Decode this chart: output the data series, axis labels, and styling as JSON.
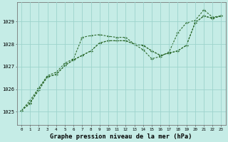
{
  "xlabel_label": "Graphe pression niveau de la mer (hPa)",
  "bg_color": "#c5ece6",
  "grid_color": "#9dd4cc",
  "line_color": "#2d6b2d",
  "x_ticks": [
    0,
    1,
    2,
    3,
    4,
    5,
    6,
    7,
    8,
    9,
    10,
    11,
    12,
    13,
    14,
    15,
    16,
    17,
    18,
    19,
    20,
    21,
    22,
    23
  ],
  "y_ticks": [
    1025,
    1026,
    1027,
    1028,
    1029
  ],
  "ylim": [
    1024.4,
    1029.85
  ],
  "xlim": [
    -0.5,
    23.5
  ],
  "series1": [
    1025.05,
    1025.4,
    1025.95,
    1026.55,
    1026.65,
    1027.05,
    1027.3,
    1027.5,
    1027.7,
    1028.05,
    1028.15,
    1028.15,
    1028.15,
    1028.0,
    1027.95,
    1027.7,
    1027.5,
    1027.6,
    1027.7,
    1027.95,
    1028.95,
    1029.25,
    1029.15,
    1029.25
  ],
  "series2": [
    1025.05,
    1025.35,
    1026.05,
    1026.55,
    1026.65,
    1027.05,
    1027.3,
    1027.5,
    1027.7,
    1028.05,
    1028.15,
    1028.15,
    1028.15,
    1028.0,
    1027.95,
    1027.7,
    1027.5,
    1027.6,
    1027.7,
    1027.95,
    1028.95,
    1029.25,
    1029.15,
    1029.25
  ],
  "series3": [
    1025.05,
    1025.5,
    1026.05,
    1026.6,
    1026.75,
    1027.15,
    1027.35,
    1028.3,
    1028.38,
    1028.42,
    1028.35,
    1028.3,
    1028.3,
    1028.0,
    1027.75,
    1027.35,
    1027.45,
    1027.65,
    1028.5,
    1028.95,
    1029.05,
    1029.52,
    1029.2,
    1029.25
  ]
}
